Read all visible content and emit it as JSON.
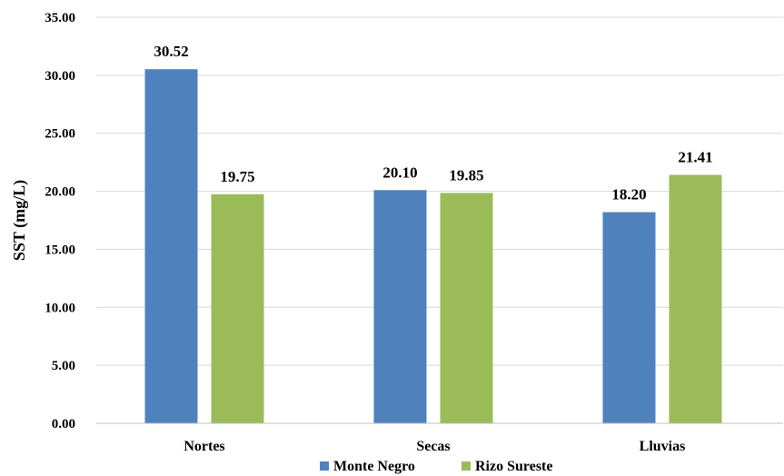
{
  "chart_data": {
    "type": "bar",
    "title": "",
    "xlabel": "",
    "ylabel": "SST (mg/L)",
    "ylim": [
      0,
      35
    ],
    "y_tick_step": 5,
    "y_tick_labels": [
      "0.00",
      "5.00",
      "10.00",
      "15.00",
      "20.00",
      "25.00",
      "30.00",
      "35.00"
    ],
    "categories": [
      "Nortes",
      "Secas",
      "Lluvias"
    ],
    "series": [
      {
        "name": "Monte Negro",
        "values": [
          30.52,
          20.1,
          18.2
        ],
        "labels": [
          "30.52",
          "20.10",
          "18.20"
        ],
        "color": "#4f81bd"
      },
      {
        "name": "Rizo Sureste",
        "values": [
          19.75,
          19.85,
          21.41
        ],
        "labels": [
          "19.75",
          "19.85",
          "21.41"
        ],
        "color": "#9bbb59"
      }
    ],
    "grid": true,
    "grid_color": "#d9d9d9",
    "legend_position": "bottom"
  }
}
